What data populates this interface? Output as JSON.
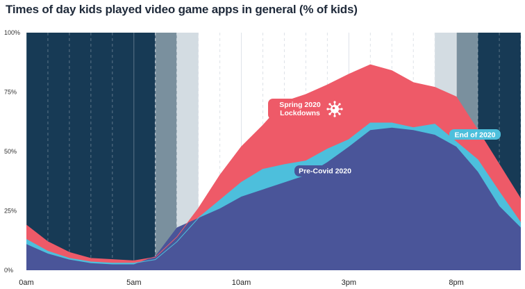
{
  "chart_data": {
    "type": "area",
    "title": "Times of day kids played video game apps in general (% of kids)",
    "xlabel": "",
    "ylabel": "",
    "ylim": [
      0,
      100
    ],
    "yticks": [
      "0%",
      "25%",
      "50%",
      "75%",
      "100%"
    ],
    "ytick_values": [
      0,
      25,
      50,
      75,
      100
    ],
    "xticks": [
      "0am",
      "5am",
      "10am",
      "3pm",
      "8pm"
    ],
    "xtick_hours": [
      0,
      5,
      10,
      15,
      20
    ],
    "x": [
      0,
      1,
      2,
      3,
      4,
      5,
      6,
      7,
      8,
      9,
      10,
      11,
      12,
      13,
      14,
      15,
      16,
      17,
      18,
      19,
      20,
      21,
      22,
      23
    ],
    "series": [
      {
        "name": "Spring 2020 Lockdowns",
        "color": "#ee5a68",
        "values": [
          19,
          12,
          7.5,
          5,
          4.5,
          4,
          5.5,
          14,
          26,
          40,
          52,
          61,
          71,
          74,
          78,
          82.5,
          86.5,
          84,
          79,
          77,
          73,
          59,
          44.5,
          30
        ]
      },
      {
        "name": "End of 2020",
        "color": "#4dbfdc",
        "values": [
          13,
          8,
          5,
          3.5,
          3,
          3,
          4.5,
          12,
          22,
          29.5,
          37,
          42.5,
          44.5,
          46,
          51,
          55,
          62,
          62,
          60,
          61.5,
          54,
          46.5,
          33,
          20
        ]
      },
      {
        "name": "Pre-Covid 2020",
        "color": "#4a5599",
        "values": [
          11,
          7,
          4.5,
          3,
          2.5,
          2.5,
          6,
          18,
          22,
          26,
          31,
          34,
          37,
          40,
          45.5,
          52,
          59,
          60,
          59,
          57,
          52,
          41.5,
          27,
          18
        ]
      }
    ],
    "night_bands": [
      {
        "from": 0,
        "to": 6,
        "color": "#173a55"
      },
      {
        "from": 6,
        "to": 7,
        "color": "#7a909e"
      },
      {
        "from": 7,
        "to": 8,
        "color": "#d3dce2"
      },
      {
        "from": 19,
        "to": 20,
        "color": "#d3dce2"
      },
      {
        "from": 20,
        "to": 21,
        "color": "#7a909e"
      },
      {
        "from": 21,
        "to": 23,
        "color": "#173a55"
      }
    ],
    "annotations": [
      {
        "series": 0,
        "lines": [
          "Spring 2020",
          "Lockdowns"
        ],
        "icon": "virus-icon"
      },
      {
        "series": 1,
        "lines": [
          "End of 2020"
        ]
      },
      {
        "series": 2,
        "lines": [
          "Pre-Covid 2020"
        ]
      }
    ],
    "grid": true,
    "legend": "inline-labels"
  }
}
